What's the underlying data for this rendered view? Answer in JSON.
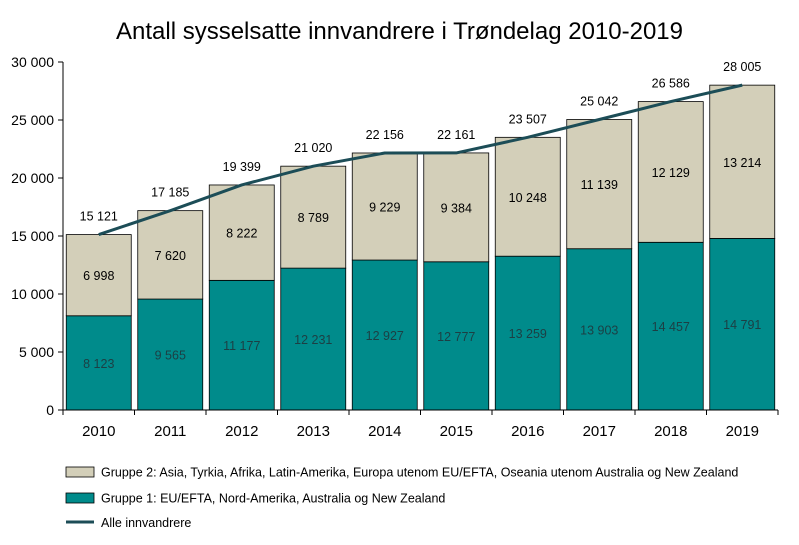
{
  "chart_data": {
    "type": "bar",
    "stacked": true,
    "title": "Antall sysselsatte innvandrere i Trøndelag 2010-2019",
    "xlabel": "",
    "ylabel": "",
    "ylim": [
      0,
      30000
    ],
    "yticks": [
      0,
      5000,
      10000,
      15000,
      20000,
      25000,
      30000
    ],
    "ytick_labels": [
      "0",
      "5 000",
      "10 000",
      "15 000",
      "20 000",
      "25 000",
      "30 000"
    ],
    "categories": [
      "2010",
      "2011",
      "2012",
      "2013",
      "2014",
      "2015",
      "2016",
      "2017",
      "2018",
      "2019"
    ],
    "series": [
      {
        "name": "Gruppe 1: EU/EFTA, Nord-Amerika, Australia og New Zealand",
        "type": "bar",
        "color": "#008b8b",
        "values": [
          8123,
          9565,
          11177,
          12231,
          12927,
          12777,
          13259,
          13903,
          14457,
          14791
        ],
        "labels": [
          "8 123",
          "9 565",
          "11 177",
          "12 231",
          "12 927",
          "12 777",
          "13 259",
          "13 903",
          "14 457",
          "14 791"
        ]
      },
      {
        "name": "Gruppe 2: Asia, Tyrkia, Afrika, Latin-Amerika, Europa utenom EU/EFTA, Oseania utenom Australia og New Zealand",
        "type": "bar",
        "color": "#d3cfb9",
        "values": [
          6998,
          7620,
          8222,
          8789,
          9229,
          9384,
          10248,
          11139,
          12129,
          13214
        ],
        "labels": [
          "6 998",
          "7 620",
          "8 222",
          "8 789",
          "9 229",
          "9 384",
          "10 248",
          "11 139",
          "12 129",
          "13 214"
        ]
      },
      {
        "name": "Alle innvandrere",
        "type": "line",
        "color": "#1c4d57",
        "values": [
          15121,
          17185,
          19399,
          21020,
          22156,
          22161,
          23507,
          25042,
          26586,
          28005
        ],
        "labels": [
          "15 121",
          "17 185",
          "19 399",
          "21 020",
          "22 156",
          "22 161",
          "23 507",
          "25 042",
          "26 586",
          "28 005"
        ]
      }
    ],
    "legend": "bottom",
    "grid": false
  }
}
